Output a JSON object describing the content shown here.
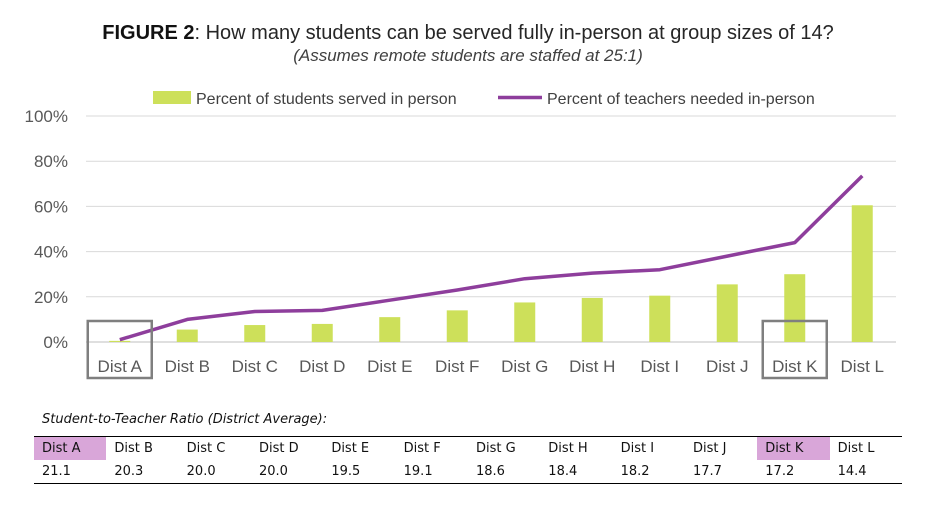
{
  "title": {
    "prefix": "FIGURE 2",
    "text": ": How many students can be served fully in-person at group sizes of 14?",
    "subtitle": "(Assumes remote students are staffed at 25:1)"
  },
  "chart_data": {
    "type": "bar",
    "categories": [
      "Dist A",
      "Dist B",
      "Dist C",
      "Dist D",
      "Dist E",
      "Dist F",
      "Dist G",
      "Dist H",
      "Dist I",
      "Dist J",
      "Dist K",
      "Dist L"
    ],
    "series": [
      {
        "name": "Percent of students served in person",
        "type": "bar",
        "color": "#cde05a",
        "values": [
          0.5,
          5.5,
          7.5,
          8,
          11,
          14,
          17.5,
          19.5,
          20.5,
          25.5,
          30,
          60.5
        ]
      },
      {
        "name": "Percent of teachers needed in-person",
        "type": "line",
        "color": "#8e3e9c",
        "values": [
          1,
          10,
          13.5,
          14,
          18.5,
          23,
          28,
          30.5,
          32,
          38,
          44,
          73.5
        ]
      }
    ],
    "y_ticks": [
      "0%",
      "20%",
      "40%",
      "60%",
      "80%",
      "100%"
    ],
    "ylim": [
      0,
      100
    ],
    "grid": true,
    "legend_position": "top",
    "highlighted_categories": [
      "Dist A",
      "Dist K"
    ]
  },
  "ratio_table": {
    "title": "Student-to-Teacher Ratio (District Average):",
    "headers": [
      "Dist A",
      "Dist B",
      "Dist C",
      "Dist D",
      "Dist E",
      "Dist F",
      "Dist G",
      "Dist H",
      "Dist I",
      "Dist J",
      "Dist K",
      "Dist L"
    ],
    "values": [
      "21.1",
      "20.3",
      "20.0",
      "20.0",
      "19.5",
      "19.1",
      "18.6",
      "18.4",
      "18.2",
      "17.7",
      "17.2",
      "14.4"
    ],
    "highlighted": [
      "Dist A",
      "Dist K"
    ],
    "highlight_color": "#d9a6d9"
  }
}
